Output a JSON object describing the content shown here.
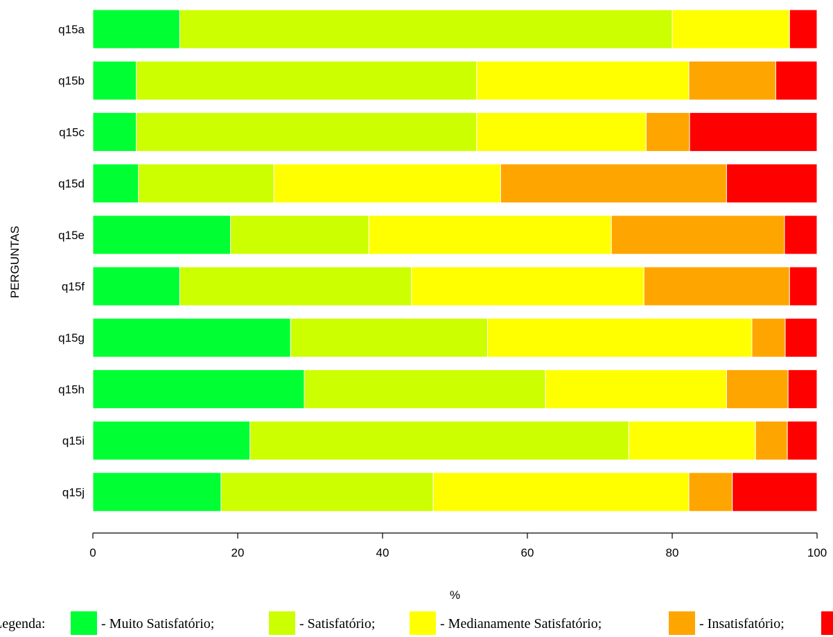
{
  "chart_data": {
    "type": "bar",
    "orientation": "horizontal",
    "stacked": true,
    "categories": [
      "q15a",
      "q15b",
      "q15c",
      "q15d",
      "q15e",
      "q15f",
      "q15g",
      "q15h",
      "q15i",
      "q15j"
    ],
    "series": [
      {
        "name": "Muito Satisfatório",
        "color": "#00ff33",
        "values": [
          12,
          6,
          6,
          6.3,
          19,
          12,
          27.3,
          29.2,
          21.7,
          17.7
        ]
      },
      {
        "name": "Satisfatório",
        "color": "#ccff00",
        "values": [
          68,
          47,
          47,
          18.7,
          19.1,
          32,
          27.2,
          33.3,
          52.3,
          29.3
        ]
      },
      {
        "name": "Medianamente Satisfatório",
        "color": "#ffff00",
        "values": [
          16.2,
          29.3,
          23.4,
          31.3,
          33.5,
          32.1,
          36.5,
          25,
          17.5,
          35.3
        ]
      },
      {
        "name": "Insatisfatório",
        "color": "#ffa500",
        "values": [
          0,
          12,
          6,
          31.2,
          23.9,
          20.1,
          4.6,
          8.5,
          4.4,
          6
        ]
      },
      {
        "name": "",
        "color": "#ff0000",
        "values": [
          3.8,
          5.7,
          17.6,
          12.5,
          4.5,
          3.8,
          4.4,
          4,
          4.1,
          11.7
        ]
      }
    ],
    "xlabel": "%",
    "ylabel": "PERGUNTAS",
    "xlim": [
      0,
      100
    ],
    "xticks": [
      0,
      20,
      40,
      60,
      80,
      100
    ],
    "grid": false,
    "legend": {
      "placement": "bottom",
      "prefix": "Legenda:",
      "entries": [
        "- Muito Satisfatório;",
        "- Satisfatório;",
        "- Medianamente Satisfatório;",
        "- Insatisfatório;"
      ]
    }
  }
}
